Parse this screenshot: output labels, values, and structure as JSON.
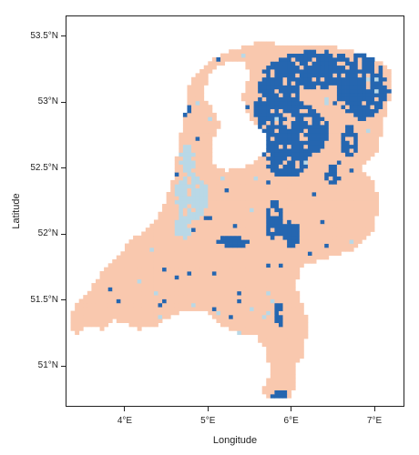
{
  "axes": {
    "xlabel": "Longitude",
    "ylabel": "Latitude",
    "xlim": [
      3.3,
      7.35
    ],
    "ylim": [
      50.7,
      53.65
    ],
    "x_ticks": [
      {
        "value": 4,
        "label": "4°E"
      },
      {
        "value": 5,
        "label": "5°E"
      },
      {
        "value": 6,
        "label": "6°E"
      },
      {
        "value": 7,
        "label": "7°E"
      }
    ],
    "y_ticks": [
      {
        "value": 51,
        "label": "51°N"
      },
      {
        "value": 51.5,
        "label": "51.5°N"
      },
      {
        "value": 52,
        "label": "52°N"
      },
      {
        "value": 52.5,
        "label": "52.5°N"
      },
      {
        "value": 53,
        "label": "53°N"
      },
      {
        "value": 53.5,
        "label": "53.5°N"
      }
    ]
  },
  "colors": {
    "land": "#f9c8ae",
    "dark_blue": "#2566b0",
    "light_blue": "#b9d8e6",
    "background": "#ffffff",
    "frame": "#222222"
  },
  "map": {
    "type": "raster",
    "land_outline": [
      [
        3.35,
        51.26
      ],
      [
        3.45,
        51.25
      ],
      [
        3.55,
        51.3
      ],
      [
        3.75,
        51.28
      ],
      [
        3.85,
        51.35
      ],
      [
        4.0,
        51.33
      ],
      [
        4.15,
        51.28
      ],
      [
        4.35,
        51.3
      ],
      [
        4.55,
        51.38
      ],
      [
        4.75,
        51.43
      ],
      [
        4.95,
        51.43
      ],
      [
        5.15,
        51.32
      ],
      [
        5.35,
        51.25
      ],
      [
        5.55,
        51.25
      ],
      [
        5.7,
        51.12
      ],
      [
        5.75,
        50.95
      ],
      [
        5.65,
        50.82
      ],
      [
        5.7,
        50.75
      ],
      [
        5.85,
        50.75
      ],
      [
        6.0,
        50.76
      ],
      [
        6.05,
        50.88
      ],
      [
        6.05,
        51.0
      ],
      [
        6.15,
        51.1
      ],
      [
        6.2,
        51.3
      ],
      [
        6.15,
        51.45
      ],
      [
        6.05,
        51.6
      ],
      [
        6.1,
        51.75
      ],
      [
        6.4,
        51.82
      ],
      [
        6.6,
        51.85
      ],
      [
        6.8,
        51.9
      ],
      [
        7.0,
        52.05
      ],
      [
        7.05,
        52.22
      ],
      [
        7.0,
        52.4
      ],
      [
        6.85,
        52.5
      ],
      [
        7.05,
        52.65
      ],
      [
        7.1,
        52.85
      ],
      [
        7.2,
        53.05
      ],
      [
        7.2,
        53.25
      ],
      [
        7.05,
        53.32
      ],
      [
        6.9,
        53.35
      ],
      [
        6.7,
        53.4
      ],
      [
        6.5,
        53.42
      ],
      [
        6.25,
        53.42
      ],
      [
        6.0,
        53.43
      ],
      [
        5.75,
        53.45
      ],
      [
        5.55,
        53.45
      ],
      [
        5.4,
        53.42
      ],
      [
        5.2,
        53.38
      ],
      [
        5.0,
        53.3
      ],
      [
        4.85,
        53.22
      ],
      [
        4.75,
        53.1
      ],
      [
        4.72,
        52.9
      ],
      [
        4.65,
        52.7
      ],
      [
        4.6,
        52.5
      ],
      [
        4.55,
        52.35
      ],
      [
        4.45,
        52.2
      ],
      [
        4.3,
        52.05
      ],
      [
        4.05,
        51.95
      ],
      [
        3.95,
        51.85
      ],
      [
        3.75,
        51.75
      ],
      [
        3.6,
        51.6
      ],
      [
        3.45,
        51.5
      ],
      [
        3.35,
        51.4
      ]
    ],
    "lake_outline": [
      [
        5.0,
        53.22
      ],
      [
        5.15,
        53.28
      ],
      [
        5.35,
        53.33
      ],
      [
        5.45,
        53.3
      ],
      [
        5.5,
        53.18
      ],
      [
        5.4,
        53.05
      ],
      [
        5.45,
        52.95
      ],
      [
        5.55,
        52.85
      ],
      [
        5.7,
        52.75
      ],
      [
        5.68,
        52.62
      ],
      [
        5.55,
        52.55
      ],
      [
        5.4,
        52.5
      ],
      [
        5.2,
        52.48
      ],
      [
        5.05,
        52.55
      ],
      [
        5.05,
        52.7
      ],
      [
        5.15,
        52.82
      ],
      [
        5.05,
        52.95
      ],
      [
        4.95,
        53.05
      ]
    ],
    "dark_blue_regions": [
      {
        "center": [
          6.3,
          53.25
        ],
        "radius": [
          0.55,
          0.14
        ]
      },
      {
        "center": [
          6.85,
          53.12
        ],
        "radius": [
          0.3,
          0.25
        ]
      },
      {
        "center": [
          5.85,
          52.95
        ],
        "radius": [
          0.28,
          0.38
        ]
      },
      {
        "center": [
          6.1,
          52.78
        ],
        "radius": [
          0.35,
          0.2
        ]
      },
      {
        "center": [
          5.95,
          52.55
        ],
        "radius": [
          0.25,
          0.12
        ]
      },
      {
        "center": [
          6.7,
          52.7
        ],
        "radius": [
          0.1,
          0.12
        ]
      },
      {
        "center": [
          5.8,
          52.1
        ],
        "radius": [
          0.1,
          0.15
        ]
      },
      {
        "center": [
          6.0,
          52.0
        ],
        "radius": [
          0.12,
          0.1
        ]
      },
      {
        "center": [
          5.3,
          51.95
        ],
        "radius": [
          0.18,
          0.05
        ]
      },
      {
        "center": [
          4.6,
          52.95
        ],
        "radius": [
          0.18,
          0.1
        ]
      },
      {
        "center": [
          5.87,
          50.78
        ],
        "radius": [
          0.1,
          0.04
        ]
      },
      {
        "center": [
          5.85,
          51.4
        ],
        "radius": [
          0.06,
          0.1
        ]
      },
      {
        "center": [
          6.5,
          52.45
        ],
        "radius": [
          0.08,
          0.08
        ]
      }
    ],
    "light_blue_regions": [
      {
        "center": [
          4.8,
          52.28
        ],
        "radius": [
          0.2,
          0.18
        ]
      },
      {
        "center": [
          4.75,
          52.55
        ],
        "radius": [
          0.1,
          0.12
        ]
      },
      {
        "center": [
          6.5,
          53.25
        ],
        "radius": [
          0.3,
          0.08
        ]
      },
      {
        "center": [
          4.7,
          52.05
        ],
        "radius": [
          0.12,
          0.08
        ]
      }
    ]
  }
}
